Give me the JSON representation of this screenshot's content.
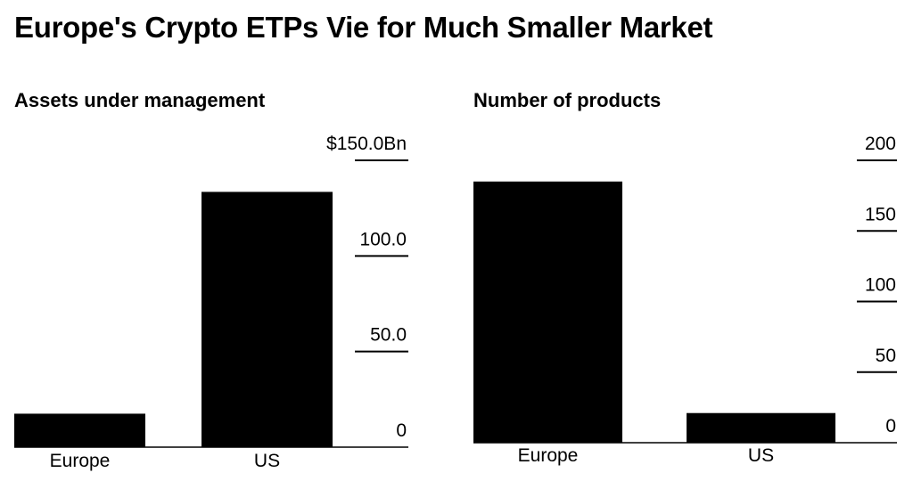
{
  "title": "Europe's Crypto ETPs Vie for Much Smaller Market",
  "chart_data": [
    {
      "type": "bar",
      "title": "Assets under management",
      "categories": [
        "Europe",
        "US"
      ],
      "values": [
        17.5,
        133.5
      ],
      "ylim": [
        0,
        150
      ],
      "yticks": [
        0,
        50,
        100,
        150
      ],
      "ytick_labels": [
        "0",
        "50.0",
        "100.0",
        "$150.0Bn"
      ],
      "axis_position": "right",
      "grid": false
    },
    {
      "type": "bar",
      "title": "Number of products",
      "categories": [
        "Europe",
        "US"
      ],
      "values": [
        185,
        21
      ],
      "ylim": [
        0,
        200
      ],
      "yticks": [
        0,
        50,
        100,
        150,
        200
      ],
      "ytick_labels": [
        "0",
        "50",
        "100",
        "150",
        "200"
      ],
      "axis_position": "right",
      "grid": false
    }
  ]
}
